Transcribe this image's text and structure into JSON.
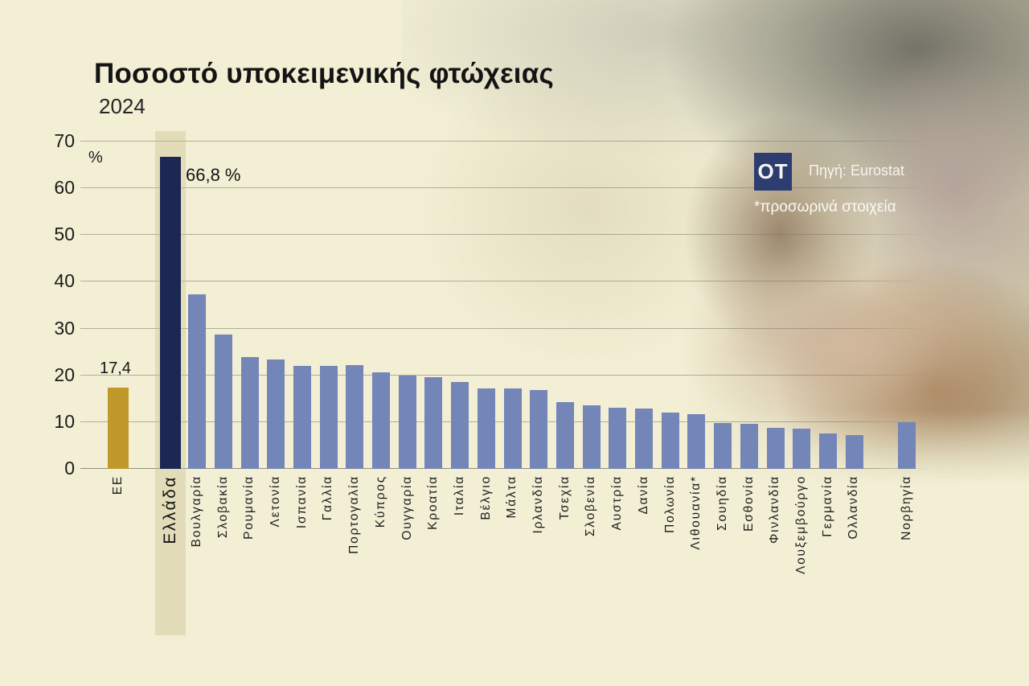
{
  "header": {
    "title": "Ποσοστό υποκειμενικής φτώχειας",
    "subtitle": "2024"
  },
  "source": {
    "logo_text": "OT",
    "label": "Πηγή: Eurostat",
    "note": "*προσωρινά στοιχεία"
  },
  "chart_data": {
    "type": "bar",
    "title": "Ποσοστό υποκειμενικής φτώχειας",
    "subtitle": "2024",
    "unit_label": "%",
    "ylim": [
      0,
      70
    ],
    "yticks": [
      0,
      10,
      20,
      30,
      40,
      50,
      60,
      70
    ],
    "grid": true,
    "legend": "none",
    "colors": {
      "eu_bar": "#c0992b",
      "highlight_bar": "#1c2753",
      "default_bar": "#7485b7",
      "background": "#f2efd4",
      "highlight_band": "rgba(201,190,143,0.38)",
      "logo_bg": "#2d3d6f"
    },
    "annotations": [
      {
        "target": "ΕΕ",
        "text": "17,4"
      },
      {
        "target": "Ελλάδα",
        "text": "66,8 %"
      }
    ],
    "bars": [
      {
        "label": "ΕΕ",
        "value": 17.4,
        "style": "eu",
        "value_label": "17,4"
      },
      {
        "label": "Ελλάδα",
        "value": 66.8,
        "style": "highlight",
        "value_label": "66,8 %",
        "gap_before": true,
        "band": true
      },
      {
        "label": "Βουλγαρία",
        "value": 37.3
      },
      {
        "label": "Σλοβακία",
        "value": 28.7
      },
      {
        "label": "Ρουμανία",
        "value": 23.9
      },
      {
        "label": "Λετονία",
        "value": 23.4
      },
      {
        "label": "Ισπανία",
        "value": 22.1
      },
      {
        "label": "Γαλλία",
        "value": 22.0
      },
      {
        "label": "Πορτογαλία",
        "value": 22.2
      },
      {
        "label": "Κύπρος",
        "value": 20.6
      },
      {
        "label": "Ουγγαρία",
        "value": 19.9
      },
      {
        "label": "Κροατία",
        "value": 19.6
      },
      {
        "label": "Ιταλία",
        "value": 18.6
      },
      {
        "label": "Βέλγιο",
        "value": 17.2
      },
      {
        "label": "Μάλτα",
        "value": 17.2
      },
      {
        "label": "Ιρλανδία",
        "value": 16.9
      },
      {
        "label": "Τσεχία",
        "value": 14.3
      },
      {
        "label": "Σλοβενία",
        "value": 13.6
      },
      {
        "label": "Αυστρία",
        "value": 13.1
      },
      {
        "label": "Δανία",
        "value": 12.9
      },
      {
        "label": "Πολωνία",
        "value": 12.0
      },
      {
        "label": "Λιθουανία*",
        "value": 11.7
      },
      {
        "label": "Σουηδία",
        "value": 9.8
      },
      {
        "label": "Εσθονία",
        "value": 9.6
      },
      {
        "label": "Φινλανδία",
        "value": 8.8
      },
      {
        "label": "Λουξεμβούργο",
        "value": 8.6
      },
      {
        "label": "Γερμανία",
        "value": 7.6
      },
      {
        "label": "Ολλανδία",
        "value": 7.3
      },
      {
        "label": "Νορβηγία",
        "value": 10.0,
        "gap_before": true
      }
    ]
  }
}
